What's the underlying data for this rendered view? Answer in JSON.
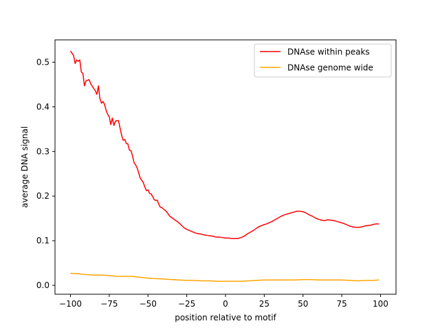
{
  "chart_data": {
    "type": "line",
    "title": "",
    "xlabel": "position relative to motif",
    "ylabel": "average DNA signal",
    "xlim": [
      -110,
      110
    ],
    "ylim": [
      -0.02,
      0.55
    ],
    "xticks": [
      -100,
      -75,
      -50,
      -25,
      0,
      25,
      50,
      75,
      100
    ],
    "xtick_labels": [
      "−100",
      "−75",
      "−50",
      "−25",
      "0",
      "25",
      "50",
      "75",
      "100"
    ],
    "yticks": [
      0.0,
      0.1,
      0.2,
      0.3,
      0.4,
      0.5
    ],
    "ytick_labels": [
      "0.0",
      "0.1",
      "0.2",
      "0.3",
      "0.4",
      "0.5"
    ],
    "grid": false,
    "legend_position": "top-right",
    "series": [
      {
        "name": "DNAse within peaks",
        "color": "#ff0000",
        "x": [
          -100,
          -98,
          -97,
          -96,
          -95,
          -94,
          -93,
          -92,
          -91,
          -90,
          -88,
          -87,
          -85,
          -84,
          -83,
          -82,
          -81,
          -80,
          -79,
          -78,
          -77,
          -76,
          -75,
          -74,
          -73,
          -72,
          -71,
          -70,
          -69,
          -68,
          -67,
          -66,
          -65,
          -64,
          -63,
          -62,
          -61,
          -60,
          -59,
          -58,
          -57,
          -56,
          -55,
          -54,
          -53,
          -52,
          -51,
          -50,
          -49,
          -48,
          -47,
          -46,
          -45,
          -44,
          -43,
          -42,
          -41,
          -40,
          -38,
          -36,
          -34,
          -32,
          -30,
          -28,
          -26,
          -24,
          -22,
          -20,
          -18,
          -16,
          -14,
          -12,
          -10,
          -8,
          -6,
          -4,
          -2,
          0,
          2,
          4,
          6,
          8,
          10,
          12,
          14,
          16,
          18,
          20,
          22,
          24,
          26,
          28,
          30,
          32,
          34,
          36,
          38,
          40,
          42,
          44,
          46,
          48,
          50,
          52,
          54,
          56,
          58,
          60,
          62,
          64,
          66,
          68,
          70,
          72,
          74,
          76,
          78,
          80,
          82,
          84,
          86,
          88,
          90,
          92,
          94,
          96,
          98,
          99
        ],
        "y": [
          0.525,
          0.515,
          0.497,
          0.505,
          0.502,
          0.505,
          0.478,
          0.475,
          0.447,
          0.458,
          0.461,
          0.452,
          0.441,
          0.436,
          0.428,
          0.447,
          0.418,
          0.408,
          0.412,
          0.405,
          0.392,
          0.383,
          0.378,
          0.36,
          0.375,
          0.358,
          0.368,
          0.369,
          0.369,
          0.352,
          0.336,
          0.325,
          0.327,
          0.318,
          0.317,
          0.303,
          0.302,
          0.29,
          0.275,
          0.27,
          0.263,
          0.252,
          0.24,
          0.235,
          0.23,
          0.22,
          0.212,
          0.214,
          0.206,
          0.205,
          0.199,
          0.192,
          0.19,
          0.191,
          0.181,
          0.175,
          0.174,
          0.171,
          0.165,
          0.155,
          0.15,
          0.145,
          0.14,
          0.133,
          0.127,
          0.124,
          0.121,
          0.118,
          0.116,
          0.115,
          0.113,
          0.112,
          0.111,
          0.11,
          0.108,
          0.108,
          0.107,
          0.106,
          0.106,
          0.105,
          0.105,
          0.105,
          0.107,
          0.11,
          0.115,
          0.119,
          0.123,
          0.128,
          0.132,
          0.135,
          0.137,
          0.14,
          0.143,
          0.147,
          0.151,
          0.155,
          0.158,
          0.16,
          0.162,
          0.164,
          0.166,
          0.166,
          0.165,
          0.162,
          0.158,
          0.155,
          0.151,
          0.148,
          0.146,
          0.145,
          0.147,
          0.146,
          0.145,
          0.143,
          0.141,
          0.139,
          0.136,
          0.133,
          0.131,
          0.13,
          0.13,
          0.131,
          0.133,
          0.134,
          0.135,
          0.137,
          0.138,
          0.137
        ]
      },
      {
        "name": "DNAse genome wide",
        "color": "#ffa500",
        "x": [
          -100,
          -95,
          -90,
          -85,
          -80,
          -75,
          -70,
          -65,
          -60,
          -55,
          -50,
          -45,
          -40,
          -35,
          -30,
          -25,
          -20,
          -15,
          -10,
          -5,
          0,
          5,
          10,
          15,
          20,
          25,
          30,
          35,
          40,
          45,
          50,
          55,
          60,
          65,
          70,
          75,
          80,
          85,
          90,
          95,
          99
        ],
        "y": [
          0.027,
          0.026,
          0.024,
          0.023,
          0.023,
          0.022,
          0.02,
          0.02,
          0.02,
          0.018,
          0.016,
          0.015,
          0.014,
          0.013,
          0.012,
          0.011,
          0.011,
          0.01,
          0.01,
          0.009,
          0.009,
          0.009,
          0.009,
          0.01,
          0.011,
          0.012,
          0.012,
          0.012,
          0.012,
          0.012,
          0.013,
          0.013,
          0.012,
          0.012,
          0.012,
          0.012,
          0.011,
          0.01,
          0.011,
          0.011,
          0.012
        ]
      }
    ]
  }
}
